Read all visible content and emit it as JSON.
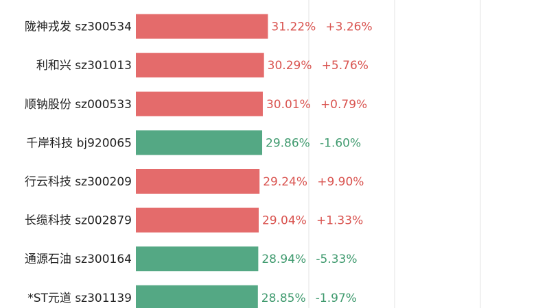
{
  "chart_data": {
    "type": "bar",
    "orientation": "horizontal",
    "grid": true,
    "colors": {
      "up": "#e46b6b",
      "down": "#54a884",
      "label_up": "#d9534f",
      "label_down": "#3f9a6e",
      "name": "#222222",
      "grid": "#e3e3e3"
    },
    "rows": [
      {
        "name": "",
        "code": "",
        "value": 31.6,
        "value_label": "",
        "change_label": "",
        "direction": "up"
      },
      {
        "name": "陇神戎发",
        "code": "sz300534",
        "value": 31.22,
        "value_label": "31.22%",
        "change_label": "+3.26%",
        "direction": "up"
      },
      {
        "name": "利和兴",
        "code": "sz301013",
        "value": 30.29,
        "value_label": "30.29%",
        "change_label": "+5.76%",
        "direction": "up"
      },
      {
        "name": "顺钠股份",
        "code": "sz000533",
        "value": 30.01,
        "value_label": "30.01%",
        "change_label": "+0.79%",
        "direction": "up"
      },
      {
        "name": "千岸科技",
        "code": "bj920065",
        "value": 29.86,
        "value_label": "29.86%",
        "change_label": "-1.60%",
        "direction": "down"
      },
      {
        "name": "行云科技",
        "code": "sz300209",
        "value": 29.24,
        "value_label": "29.24%",
        "change_label": "+9.90%",
        "direction": "up"
      },
      {
        "name": "长缆科技",
        "code": "sz002879",
        "value": 29.04,
        "value_label": "29.04%",
        "change_label": "+1.33%",
        "direction": "up"
      },
      {
        "name": "通源石油",
        "code": "sz300164",
        "value": 28.94,
        "value_label": "28.94%",
        "change_label": "-5.33%",
        "direction": "down"
      },
      {
        "name": "*ST元道",
        "code": "sz301139",
        "value": 28.85,
        "value_label": "28.85%",
        "change_label": "-1.97%",
        "direction": "down"
      }
    ]
  }
}
